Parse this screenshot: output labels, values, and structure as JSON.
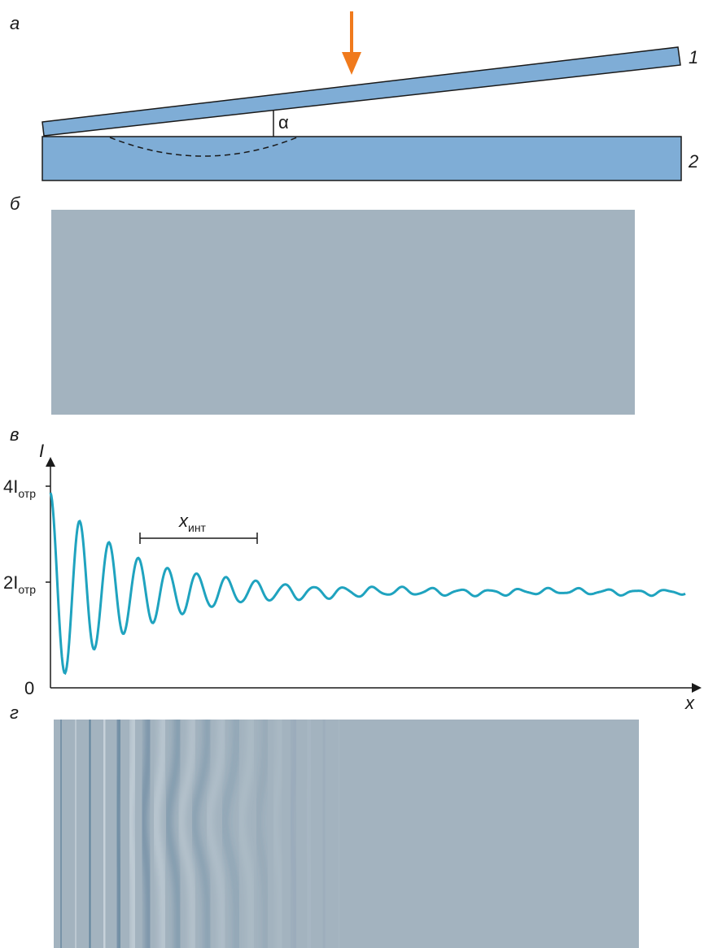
{
  "panel_a": {
    "label": "а",
    "plate_top_label": "1",
    "plate_bottom_label": "2",
    "angle_label": "α"
  },
  "panel_b": {
    "label": "б"
  },
  "panel_c": {
    "label": "в",
    "y_axis_label": "I",
    "x_axis_label": "x",
    "tick_4": {
      "main": "4I",
      "sub": "отр"
    },
    "tick_2": {
      "main": "2I",
      "sub": "отр"
    },
    "tick_0": "0",
    "period_label": {
      "main": "x",
      "sub": "инт"
    }
  },
  "panel_d": {
    "label": "г"
  }
}
